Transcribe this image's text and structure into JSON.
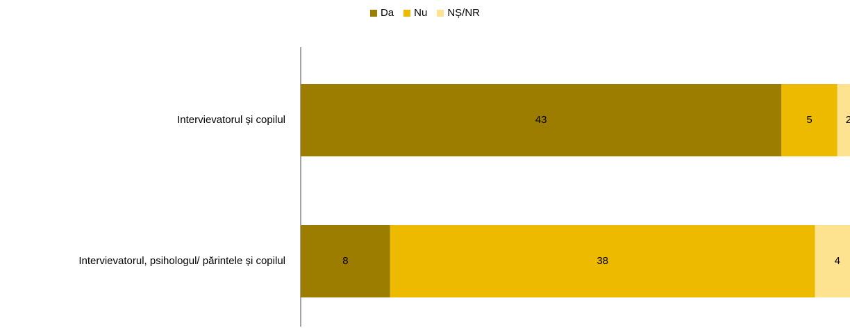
{
  "chart_data": {
    "type": "bar",
    "orientation": "horizontal",
    "stacked": true,
    "categories": [
      "Intervievatorul și copilul",
      "Intervievatorul, psihologul/ părintele și copilul"
    ],
    "series": [
      {
        "name": "Da",
        "color": "#9C7D00",
        "values": [
          43,
          8
        ]
      },
      {
        "name": "Nu",
        "color": "#EDBA00",
        "values": [
          5,
          38
        ]
      },
      {
        "name": "NȘ/NR",
        "color": "#FDE38F",
        "values": [
          2,
          4
        ]
      }
    ],
    "xlim": [
      0,
      50
    ],
    "legend_position": "top",
    "grid": false
  }
}
